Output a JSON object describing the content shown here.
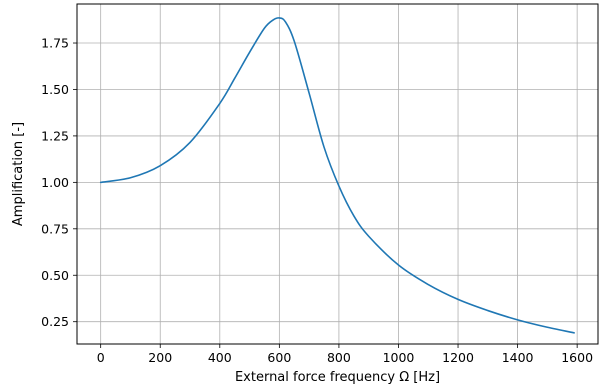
{
  "chart_data": {
    "type": "line",
    "title": "",
    "xlabel": "External force frequency Ω [Hz]",
    "ylabel": "Amplification [-]",
    "xlim": [
      -79.5,
      1670
    ],
    "ylim": [
      0.13,
      1.96
    ],
    "grid": true,
    "legend": "none",
    "x_ticks": [
      0,
      200,
      400,
      600,
      800,
      1000,
      1200,
      1400,
      1600
    ],
    "x_tick_labels": [
      "0",
      "200",
      "400",
      "600",
      "800",
      "1000",
      "1200",
      "1400",
      "1600"
    ],
    "y_ticks": [
      0.25,
      0.5,
      0.75,
      1.0,
      1.25,
      1.5,
      1.75
    ],
    "y_tick_labels": [
      "0.25",
      "0.50",
      "0.75",
      "1.00",
      "1.25",
      "1.50",
      "1.75"
    ],
    "series": [
      {
        "color": "#1f77b4",
        "x": [
          0,
          100,
          200,
          300,
          400,
          450,
          500,
          550,
          580,
          600,
          620,
          650,
          700,
          750,
          800,
          850,
          900,
          1000,
          1100,
          1200,
          1300,
          1400,
          1500,
          1590
        ],
        "y": [
          1.0,
          1.025,
          1.09,
          1.215,
          1.425,
          1.56,
          1.7,
          1.83,
          1.875,
          1.885,
          1.865,
          1.76,
          1.48,
          1.19,
          0.98,
          0.82,
          0.71,
          0.555,
          0.45,
          0.37,
          0.31,
          0.26,
          0.22,
          0.19
        ]
      }
    ]
  }
}
